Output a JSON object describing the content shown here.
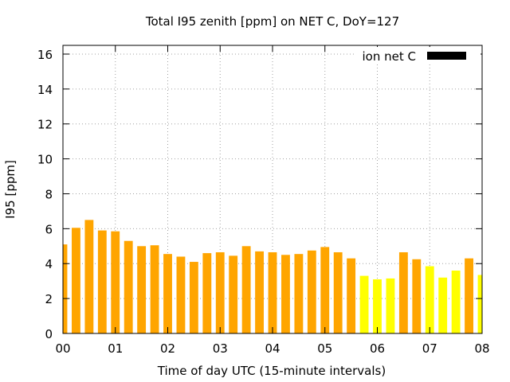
{
  "chart_data": {
    "type": "bar",
    "title": "Total I95 zenith [ppm] on NET C, DoY=127",
    "xlabel": "Time of day UTC (15-minute intervals)",
    "ylabel": "I95 [ppm]",
    "xlim": [
      0,
      8
    ],
    "ylim": [
      0,
      16.5
    ],
    "yticks": [
      0,
      2,
      4,
      6,
      8,
      10,
      12,
      14,
      16
    ],
    "xticks": [
      0,
      1,
      2,
      3,
      4,
      5,
      6,
      7,
      8
    ],
    "xtick_labels": [
      "00",
      "01",
      "02",
      "03",
      "04",
      "05",
      "06",
      "07",
      "08"
    ],
    "grid": true,
    "legend": {
      "position": "top-right",
      "entries": [
        {
          "label": "ion net C",
          "color": "#000000"
        }
      ]
    },
    "colors": {
      "orange": "#FFA500",
      "yellow": "#FFFF00"
    },
    "bars": [
      {
        "x": 0.0,
        "value": 5.1,
        "color": "orange"
      },
      {
        "x": 0.25,
        "value": 6.05,
        "color": "orange"
      },
      {
        "x": 0.5,
        "value": 6.5,
        "color": "orange"
      },
      {
        "x": 0.75,
        "value": 5.9,
        "color": "orange"
      },
      {
        "x": 1.0,
        "value": 5.85,
        "color": "orange"
      },
      {
        "x": 1.25,
        "value": 5.3,
        "color": "orange"
      },
      {
        "x": 1.5,
        "value": 5.0,
        "color": "orange"
      },
      {
        "x": 1.75,
        "value": 5.05,
        "color": "orange"
      },
      {
        "x": 2.0,
        "value": 4.55,
        "color": "orange"
      },
      {
        "x": 2.25,
        "value": 4.4,
        "color": "orange"
      },
      {
        "x": 2.5,
        "value": 4.1,
        "color": "orange"
      },
      {
        "x": 2.75,
        "value": 4.6,
        "color": "orange"
      },
      {
        "x": 3.0,
        "value": 4.65,
        "color": "orange"
      },
      {
        "x": 3.25,
        "value": 4.45,
        "color": "orange"
      },
      {
        "x": 3.5,
        "value": 5.0,
        "color": "orange"
      },
      {
        "x": 3.75,
        "value": 4.7,
        "color": "orange"
      },
      {
        "x": 4.0,
        "value": 4.65,
        "color": "orange"
      },
      {
        "x": 4.25,
        "value": 4.5,
        "color": "orange"
      },
      {
        "x": 4.5,
        "value": 4.55,
        "color": "orange"
      },
      {
        "x": 4.75,
        "value": 4.75,
        "color": "orange"
      },
      {
        "x": 5.0,
        "value": 4.95,
        "color": "orange"
      },
      {
        "x": 5.25,
        "value": 4.65,
        "color": "orange"
      },
      {
        "x": 5.5,
        "value": 4.3,
        "color": "orange"
      },
      {
        "x": 5.75,
        "value": 3.3,
        "color": "yellow"
      },
      {
        "x": 6.0,
        "value": 3.1,
        "color": "yellow"
      },
      {
        "x": 6.25,
        "value": 3.15,
        "color": "yellow"
      },
      {
        "x": 6.5,
        "value": 4.65,
        "color": "orange"
      },
      {
        "x": 6.75,
        "value": 4.25,
        "color": "orange"
      },
      {
        "x": 7.0,
        "value": 3.85,
        "color": "yellow"
      },
      {
        "x": 7.25,
        "value": 3.2,
        "color": "yellow"
      },
      {
        "x": 7.5,
        "value": 3.6,
        "color": "yellow"
      },
      {
        "x": 7.75,
        "value": 4.3,
        "color": "orange"
      },
      {
        "x": 8.0,
        "value": 3.35,
        "color": "yellow"
      }
    ]
  }
}
